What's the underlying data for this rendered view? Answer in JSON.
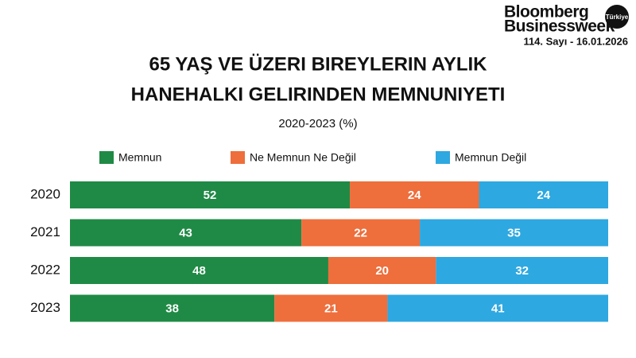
{
  "header": {
    "brand": [
      "Bloomberg",
      "Businessweek"
    ],
    "badge": "Türkiye",
    "issue": "114. Sayı - 16.01.2026"
  },
  "chart_data": {
    "type": "stacked_bar",
    "orientation": "horizontal",
    "title": [
      "65 YAŞ VE ÜZERI BIREYLERIN AYLIK",
      "HANEHALKI GELIRINDEN MEMNUNIYETI"
    ],
    "subtitle": "2020-2023 (%)",
    "categories": [
      "2020",
      "2021",
      "2022",
      "2023"
    ],
    "series": [
      {
        "name": "Memnun",
        "color": "#1f8a45",
        "values": [
          52,
          43,
          48,
          38
        ]
      },
      {
        "name": "Ne Memnun Ne Değil",
        "color": "#ee6e3c",
        "values": [
          24,
          22,
          20,
          21
        ]
      },
      {
        "name": "Memnun Değil",
        "color": "#2ea8e0",
        "values": [
          24,
          35,
          32,
          41
        ]
      }
    ],
    "xlim": [
      0,
      100
    ]
  }
}
